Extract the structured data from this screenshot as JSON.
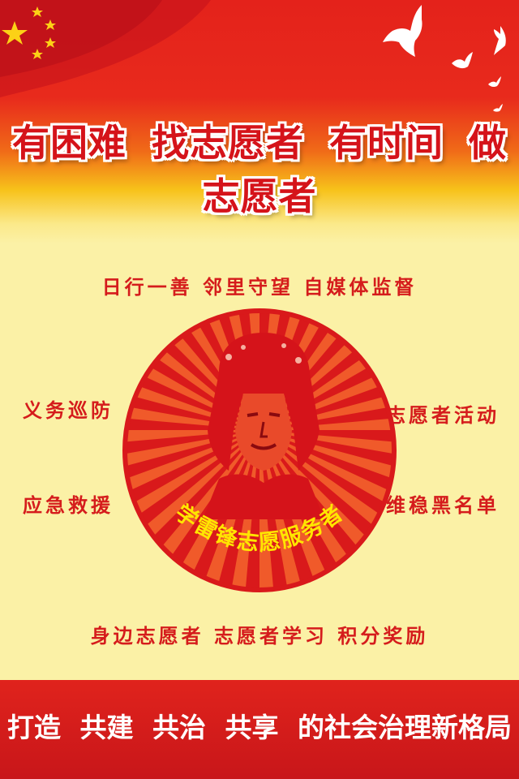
{
  "slogan": "有困难 找志愿者 有时间 做志愿者",
  "services": {
    "top_row": "日行一善  邻里守望  自媒体监督",
    "left_1": "义务巡防",
    "left_2": "应急救援",
    "right_1": "志愿者活动",
    "right_2": "维稳黑名单",
    "bottom_row": "身边志愿者  志愿者学习  积分奖励"
  },
  "emblem": {
    "arc_text": "学雷锋志愿服务者"
  },
  "footer": "打造 共建 共治 共享 的社会治理新格局",
  "colors": {
    "red": "#d5131a",
    "yellow_bg": "#fbf1a6",
    "star": "#fcd116",
    "arc_text": "#ffe600"
  },
  "icons": [
    "flag-icon",
    "dove-icon"
  ]
}
